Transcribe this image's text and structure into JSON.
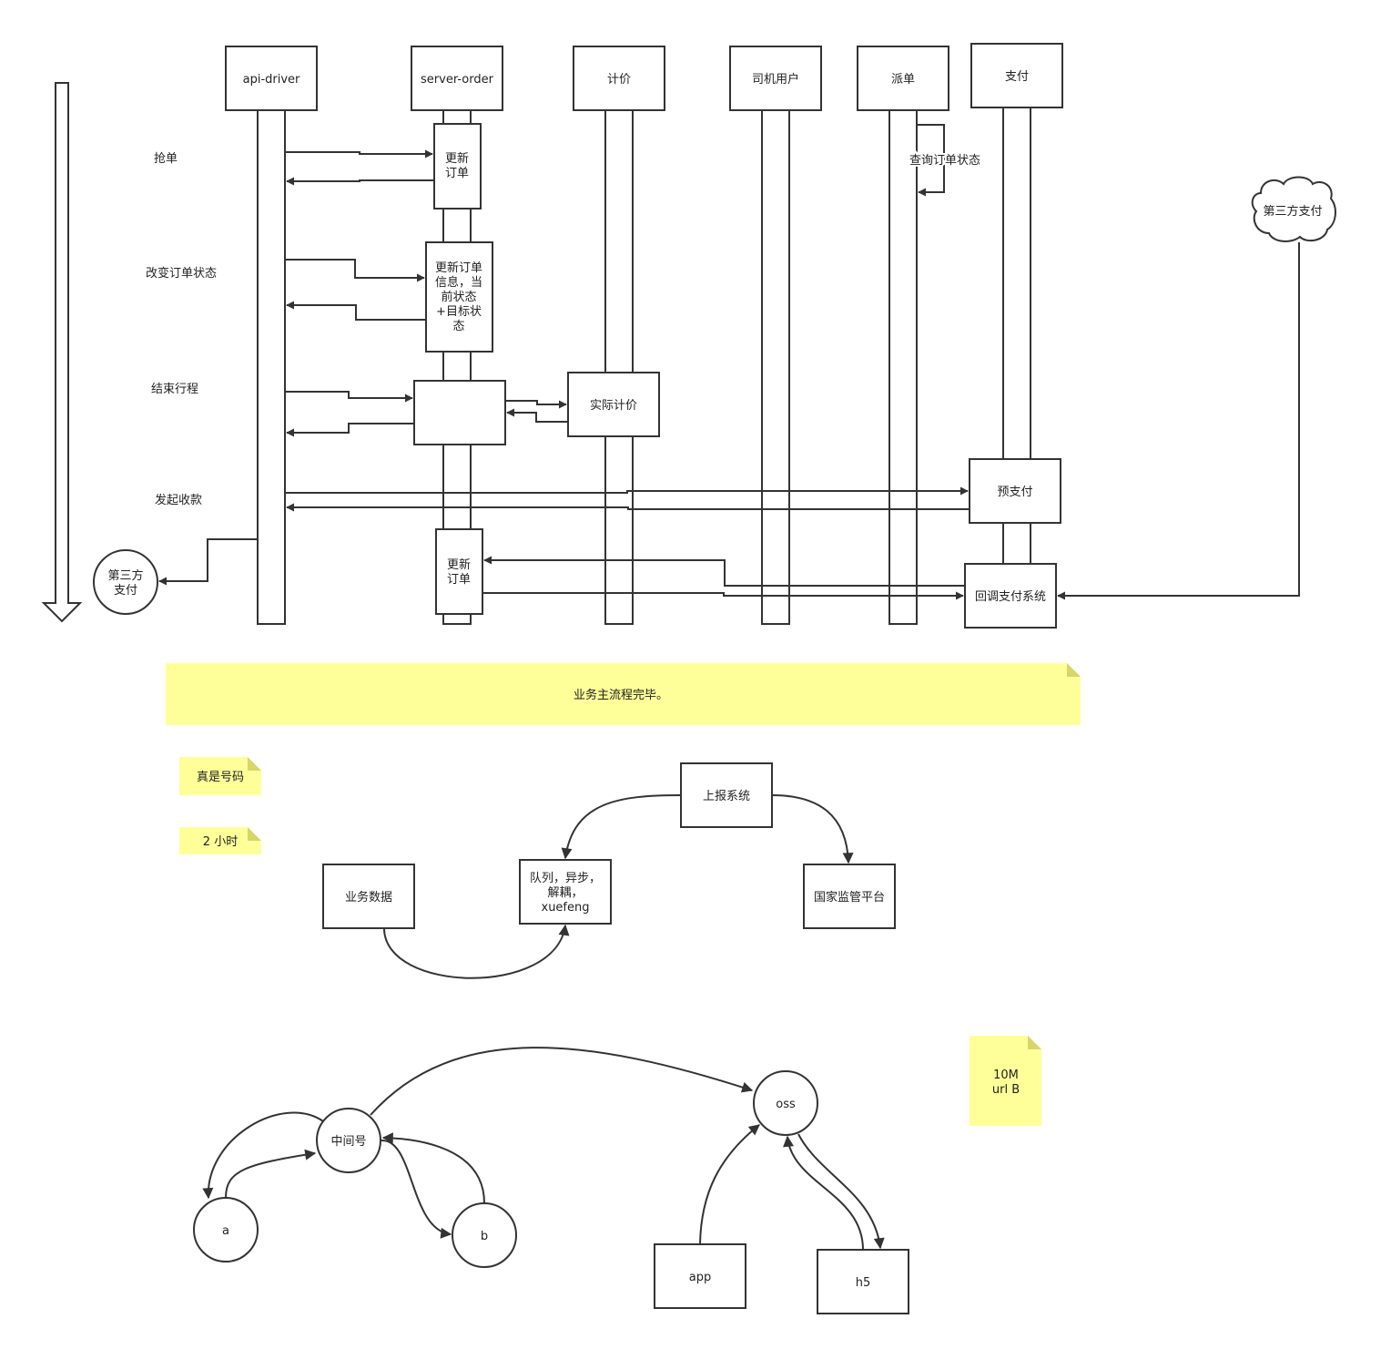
{
  "colors": {
    "stroke": "#333333",
    "note_fill": "#ffff99",
    "note_fold": "#d6d66a",
    "background": "#ffffff"
  },
  "sequence": {
    "participants": {
      "api_driver": "api-driver",
      "server_order": "server-order",
      "pricing": "计价",
      "driver_user": "司机用户",
      "dispatch": "派单",
      "payment": "支付"
    },
    "steps": {
      "grab_order": "抢单",
      "change_status": "改变订单状态",
      "end_trip": "结束行程",
      "start_collection": "发起收款"
    },
    "boxes": {
      "update_order_1": [
        "更新",
        "订单"
      ],
      "update_order_info": [
        "更新订单",
        "信息，当",
        "前状态",
        "+目标状",
        "态"
      ],
      "actual_pricing": "实际计价",
      "prepay": "预支付",
      "update_order_2": [
        "更新",
        "订单"
      ],
      "callback_payment": "回调支付系统",
      "query_order_status": "查询订单状态",
      "third_party_pay_circle": [
        "第三方",
        "支付"
      ],
      "third_party_pay_cloud": "第三方支付"
    }
  },
  "notes": {
    "main_flow_done": "业务主流程完毕。",
    "real_number": "真是号码",
    "two_hours": "2 小时",
    "size_url": [
      "10M",
      "url B"
    ]
  },
  "report_diagram": {
    "report_system": "上报系统",
    "queue": [
      "队列，异步，",
      "解耦，",
      "xuefeng"
    ],
    "regulator": "国家监管平台",
    "business_data": "业务数据"
  },
  "relay_diagram": {
    "middle_number": "中间号",
    "a": "a",
    "b": "b",
    "oss": "oss",
    "app": "app",
    "h5": "h5"
  }
}
